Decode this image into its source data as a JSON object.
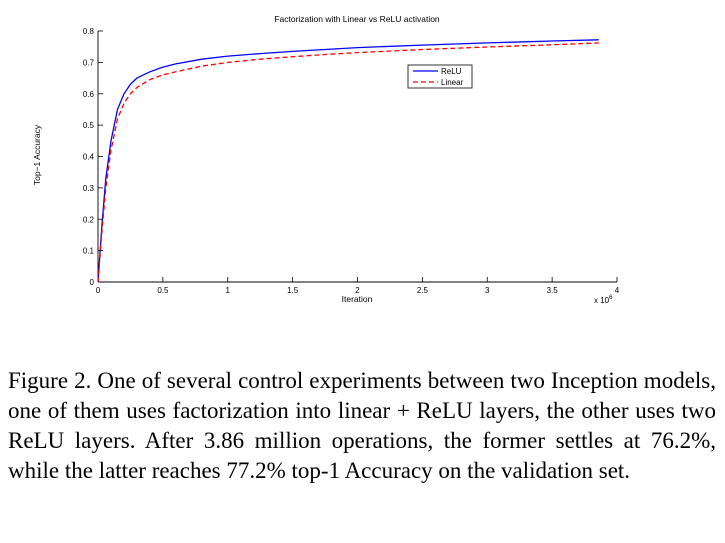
{
  "chart_data": {
    "type": "line",
    "title": "Factorization with Linear vs ReLU activation",
    "xlabel": "Iteration",
    "ylabel": "Top−1 Accuracy",
    "x_scale_note": "x 10",
    "x_scale_exponent": "6",
    "xlim": [
      0,
      4
    ],
    "ylim": [
      0,
      0.8
    ],
    "xticks": [
      0,
      0.5,
      1,
      1.5,
      2,
      2.5,
      3,
      3.5,
      4
    ],
    "xtick_labels": [
      "0",
      "0.5",
      "1",
      "1.5",
      "2",
      "2.5",
      "3",
      "3.5",
      "4"
    ],
    "yticks": [
      0,
      0.1,
      0.2,
      0.3,
      0.4,
      0.5,
      0.6,
      0.7,
      0.8
    ],
    "ytick_labels": [
      "0",
      "0.1",
      "0.2",
      "0.3",
      "0.4",
      "0.5",
      "0.6",
      "0.7",
      "0.8"
    ],
    "legend_position": "top-right",
    "series": [
      {
        "name": "ReLU",
        "color": "#0000ff",
        "style": "solid",
        "x": [
          0,
          0.03,
          0.06,
          0.1,
          0.15,
          0.2,
          0.25,
          0.3,
          0.4,
          0.5,
          0.6,
          0.8,
          1.0,
          1.25,
          1.5,
          1.75,
          2.0,
          2.5,
          3.0,
          3.5,
          3.86
        ],
        "values": [
          0.0,
          0.18,
          0.33,
          0.45,
          0.55,
          0.6,
          0.63,
          0.65,
          0.67,
          0.685,
          0.695,
          0.71,
          0.72,
          0.728,
          0.735,
          0.741,
          0.747,
          0.755,
          0.762,
          0.768,
          0.772
        ]
      },
      {
        "name": "Linear",
        "color": "#ff0000",
        "style": "dashed",
        "x": [
          0,
          0.03,
          0.06,
          0.1,
          0.15,
          0.2,
          0.25,
          0.3,
          0.4,
          0.5,
          0.6,
          0.8,
          1.0,
          1.25,
          1.5,
          1.75,
          2.0,
          2.5,
          3.0,
          3.5,
          3.86
        ],
        "values": [
          0.0,
          0.16,
          0.3,
          0.42,
          0.52,
          0.57,
          0.6,
          0.62,
          0.645,
          0.66,
          0.67,
          0.688,
          0.7,
          0.71,
          0.718,
          0.725,
          0.731,
          0.741,
          0.749,
          0.756,
          0.762
        ]
      }
    ]
  },
  "caption": "Figure 2. One of several control experiments between two Inception models, one of them uses factorization into linear + ReLU layers, the other uses two ReLU layers. After 3.86 million operations, the former settles at 76.2%, while the latter reaches 77.2% top-1 Accuracy on the validation set."
}
